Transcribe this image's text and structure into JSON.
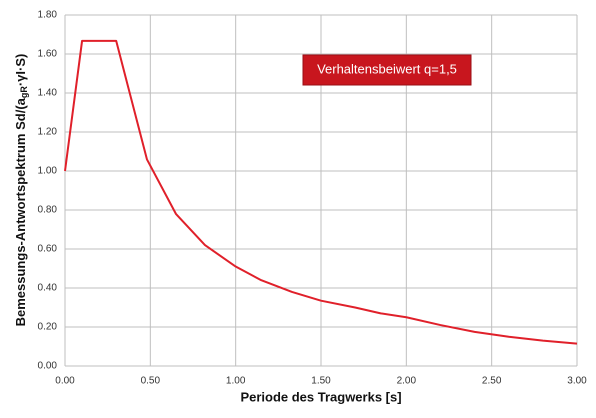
{
  "chart_data": {
    "type": "line",
    "xlabel": "Periode des Tragwerks [s]",
    "ylabel_parts": [
      "Bemessungs-Antwortspektrum Sd/(a",
      "gR",
      "·γI·S)"
    ],
    "annotation": "Verhaltensbeiwert q=1,5",
    "x": [
      0,
      0.1,
      0.3,
      0.48,
      0.65,
      0.82,
      1.0,
      1.15,
      1.33,
      1.5,
      1.7,
      1.85,
      2.0,
      2.2,
      2.4,
      2.6,
      2.8,
      3.0
    ],
    "series": [
      {
        "color": "#e0202a",
        "values": [
          1.0,
          1.667,
          1.667,
          1.06,
          0.78,
          0.62,
          0.51,
          0.44,
          0.38,
          0.335,
          0.3,
          0.27,
          0.25,
          0.21,
          0.175,
          0.15,
          0.13,
          0.115
        ]
      }
    ],
    "xlim": [
      0,
      3
    ],
    "ylim": [
      0,
      1.8
    ],
    "xticks": [
      {
        "value": 0,
        "label": "0.00"
      },
      {
        "value": 0.5,
        "label": "0.50"
      },
      {
        "value": 1,
        "label": "1.00"
      },
      {
        "value": 1.5,
        "label": "1.50"
      },
      {
        "value": 2,
        "label": "2.00"
      },
      {
        "value": 2.5,
        "label": "2.50"
      },
      {
        "value": 3,
        "label": "3.00"
      }
    ],
    "yticks": [
      {
        "value": 0,
        "label": "0.00"
      },
      {
        "value": 0.2,
        "label": "0.20"
      },
      {
        "value": 0.4,
        "label": "0.40"
      },
      {
        "value": 0.6,
        "label": "0.60"
      },
      {
        "value": 0.8,
        "label": "0.80"
      },
      {
        "value": 1,
        "label": "1.00"
      },
      {
        "value": 1.2,
        "label": "1.20"
      },
      {
        "value": 1.4,
        "label": "1.40"
      },
      {
        "value": 1.6,
        "label": "1.60"
      },
      {
        "value": 1.8,
        "label": "1.80"
      }
    ],
    "grid": true
  }
}
